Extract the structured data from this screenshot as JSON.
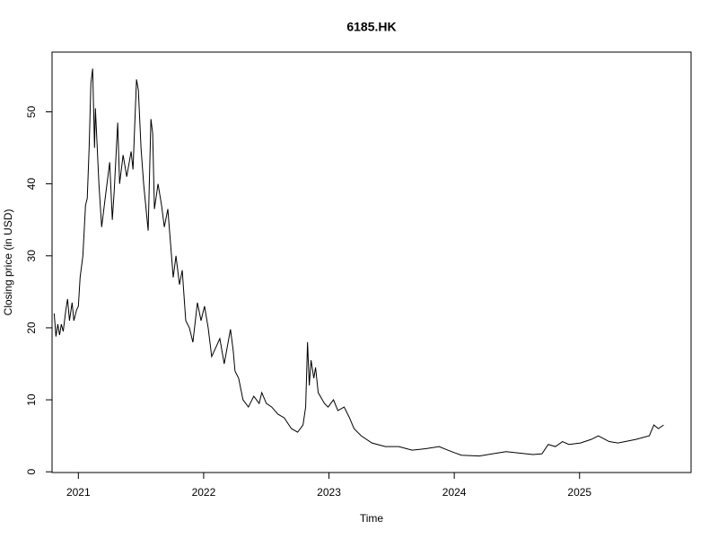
{
  "chart_data": {
    "type": "line",
    "title": "6185.HK",
    "x_label": "Time",
    "y_label": "Closing price (in USD)",
    "color": "#000000",
    "x": [
      2020.807,
      2020.821,
      2020.836,
      2020.85,
      2020.864,
      2020.879,
      2020.9,
      2020.914,
      2020.929,
      2020.95,
      2020.964,
      2020.986,
      2021.0,
      2021.014,
      2021.036,
      2021.057,
      2021.071,
      2021.086,
      2021.1,
      2021.114,
      2021.129,
      2021.136,
      2021.164,
      2021.186,
      2021.214,
      2021.25,
      2021.271,
      2021.286,
      2021.314,
      2021.329,
      2021.357,
      2021.386,
      2021.421,
      2021.436,
      2021.464,
      2021.479,
      2021.5,
      2021.521,
      2021.557,
      2021.579,
      2021.593,
      2021.607,
      2021.636,
      2021.664,
      2021.686,
      2021.714,
      2021.757,
      2021.779,
      2021.807,
      2021.829,
      2021.857,
      2021.886,
      2021.914,
      2021.95,
      2021.979,
      2022.007,
      2022.036,
      2022.064,
      2022.129,
      2022.164,
      2022.214,
      2022.236,
      2022.25,
      2022.279,
      2022.314,
      2022.357,
      2022.4,
      2022.443,
      2022.464,
      2022.5,
      2022.543,
      2022.593,
      2022.643,
      2022.7,
      2022.75,
      2022.793,
      2022.814,
      2022.829,
      2022.843,
      2022.857,
      2022.879,
      2022.893,
      2022.914,
      2022.964,
      2022.993,
      2023.036,
      2023.071,
      2023.121,
      2023.164,
      2023.2,
      2023.257,
      2023.343,
      2023.45,
      2023.557,
      2023.664,
      2023.771,
      2023.879,
      2023.95,
      2024.057,
      2024.2,
      2024.307,
      2024.414,
      2024.521,
      2024.629,
      2024.7,
      2024.75,
      2024.807,
      2024.864,
      2024.914,
      2025.007,
      2025.093,
      2025.15,
      2025.236,
      2025.307,
      2025.45,
      2025.557,
      2025.593,
      2025.629,
      2025.671
    ],
    "values": [
      22,
      18.8,
      20.5,
      19,
      20.5,
      19.5,
      22.5,
      24,
      21,
      23.5,
      21,
      22.5,
      23,
      27,
      30,
      37,
      38,
      45,
      54,
      56,
      45,
      50.5,
      40,
      34,
      38,
      43,
      35,
      39,
      48.5,
      40,
      44,
      41,
      44.5,
      42,
      54.5,
      53,
      45,
      40,
      33.5,
      49,
      47,
      36.5,
      40,
      37,
      34,
      36.5,
      27,
      30,
      26,
      28,
      21,
      20,
      18,
      23.5,
      21,
      23,
      20,
      16,
      18.5,
      15,
      19.8,
      16.8,
      14,
      13,
      10,
      9,
      10.5,
      9.5,
      11,
      9.5,
      9,
      8,
      7.5,
      6,
      5.5,
      6.5,
      9,
      18,
      12,
      15.5,
      13,
      14.5,
      11,
      9.5,
      9,
      10,
      8.5,
      9,
      7.5,
      6,
      5,
      4,
      3.5,
      3.5,
      3,
      3.2,
      3.5,
      3,
      2.3,
      2.2,
      2.5,
      2.8,
      2.6,
      2.4,
      2.5,
      3.8,
      3.5,
      4.2,
      3.8,
      4,
      4.5,
      5,
      4.2,
      4,
      4.5,
      5,
      6.5,
      6,
      6.5
    ],
    "xlim": [
      2020.79,
      2025.89
    ],
    "xticks": [
      2021,
      2022,
      2023,
      2024,
      2025
    ],
    "ylim": [
      -0.1,
      58.3
    ],
    "yticks": [
      0,
      10,
      20,
      30,
      40,
      50
    ]
  }
}
